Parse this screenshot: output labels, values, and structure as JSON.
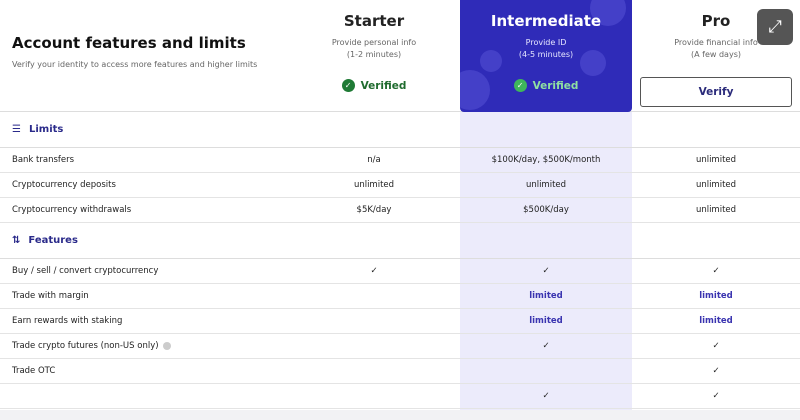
{
  "header": {
    "title": "Account features and limits",
    "subtitle": "Verify your identity to access more features and higher limits"
  },
  "tiers": [
    {
      "name": "Starter",
      "desc1": "Provide personal info",
      "desc2": "(1-2 minutes)",
      "status": "Verified"
    },
    {
      "name": "Intermediate",
      "desc1": "Provide ID",
      "desc2": "(4-5 minutes)",
      "status": "Verified"
    },
    {
      "name": "Pro",
      "desc1": "Provide financial info",
      "desc2": "(A few days)",
      "button": "Verify"
    }
  ],
  "sections": {
    "limits": "Limits",
    "features": "Features"
  },
  "limits": [
    {
      "label": "Bank transfers",
      "values": [
        "n/a",
        "$100K/day, $500K/month",
        "unlimited"
      ]
    },
    {
      "label": "Cryptocurrency deposits",
      "values": [
        "unlimited",
        "unlimited",
        "unlimited"
      ]
    },
    {
      "label": "Cryptocurrency withdrawals",
      "values": [
        "$5K/day",
        "$500K/day",
        "unlimited"
      ]
    }
  ],
  "features": [
    {
      "label": "Buy / sell / convert cryptocurrency",
      "values": [
        "✓",
        "✓",
        "✓"
      ]
    },
    {
      "label": "Trade with margin",
      "values": [
        "",
        "limited",
        "limited"
      ]
    },
    {
      "label": "Earn rewards with staking",
      "values": [
        "",
        "limited",
        "limited"
      ]
    },
    {
      "label": "Trade crypto futures (non-US only)",
      "values": [
        "",
        "✓",
        "✓"
      ]
    },
    {
      "label": "Trade OTC",
      "values": [
        "",
        "",
        "✓"
      ]
    },
    {
      "label": "",
      "values": [
        "",
        "✓",
        "✓"
      ]
    }
  ],
  "colors": {
    "accent": "#2f2bb8",
    "verified": "#1f7a35",
    "highlight": "#ecebfb"
  }
}
